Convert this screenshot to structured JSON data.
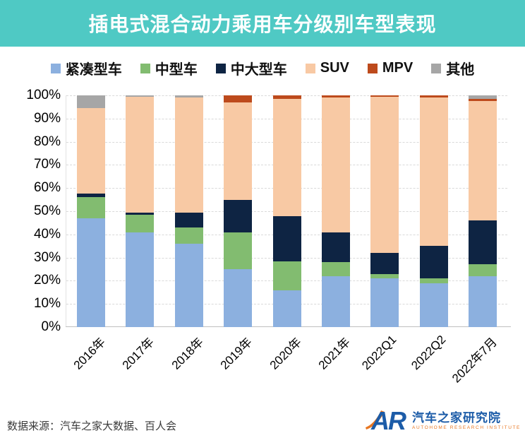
{
  "title": "插电式混合动力乘用车分级别车型表现",
  "colors": {
    "banner": "#4fc9c4",
    "grid": "#d9d9d9",
    "axis_line": "#bfbfbf",
    "logo_blue": "#1c5ca8",
    "logo_orange": "#e87722"
  },
  "chart_data": {
    "type": "bar",
    "stacked": true,
    "title": "插电式混合动力乘用车分级别车型表现",
    "categories": [
      "2016年",
      "2017年",
      "2018年",
      "2019年",
      "2020年",
      "2021年",
      "2022Q1",
      "2022Q2",
      "2022年7月"
    ],
    "series": [
      {
        "name": "紧凑型车",
        "color": "#8cb0df",
        "values": [
          47,
          41,
          36,
          25,
          16,
          22,
          21,
          19,
          22
        ]
      },
      {
        "name": "中型车",
        "color": "#82bc70",
        "values": [
          9,
          7.5,
          7,
          16,
          12.5,
          6,
          2,
          2,
          5
        ]
      },
      {
        "name": "中大型车",
        "color": "#0e2443",
        "values": [
          1.5,
          1,
          6.5,
          14,
          19.5,
          13,
          9,
          14,
          19
        ]
      },
      {
        "name": "SUV",
        "color": "#f8c9a4",
        "values": [
          37,
          50,
          49.5,
          42,
          50.5,
          58,
          67.5,
          64,
          51.5
        ]
      },
      {
        "name": "MPV",
        "color": "#bd4a1c",
        "values": [
          0,
          0,
          0,
          3,
          1.5,
          1,
          0.5,
          1,
          1
        ]
      },
      {
        "name": "其他",
        "color": "#a6a6a6",
        "values": [
          5.5,
          0.5,
          1,
          0,
          0,
          0,
          0,
          0,
          1.5
        ]
      }
    ],
    "y_axis": {
      "min": 0,
      "max": 100,
      "step": 10,
      "unit": "%",
      "tick_labels": [
        "0%",
        "10%",
        "20%",
        "30%",
        "40%",
        "50%",
        "60%",
        "70%",
        "80%",
        "90%",
        "100%"
      ]
    },
    "legend_position": "top",
    "grid": "horizontal-dashed"
  },
  "footer": {
    "source": "数据来源：汽车之家大数据、百人会"
  },
  "logo": {
    "monogram": "AR",
    "cn": "汽车之家研究院",
    "en": "AUTOHOME RESEARCH INSTITUTE"
  }
}
